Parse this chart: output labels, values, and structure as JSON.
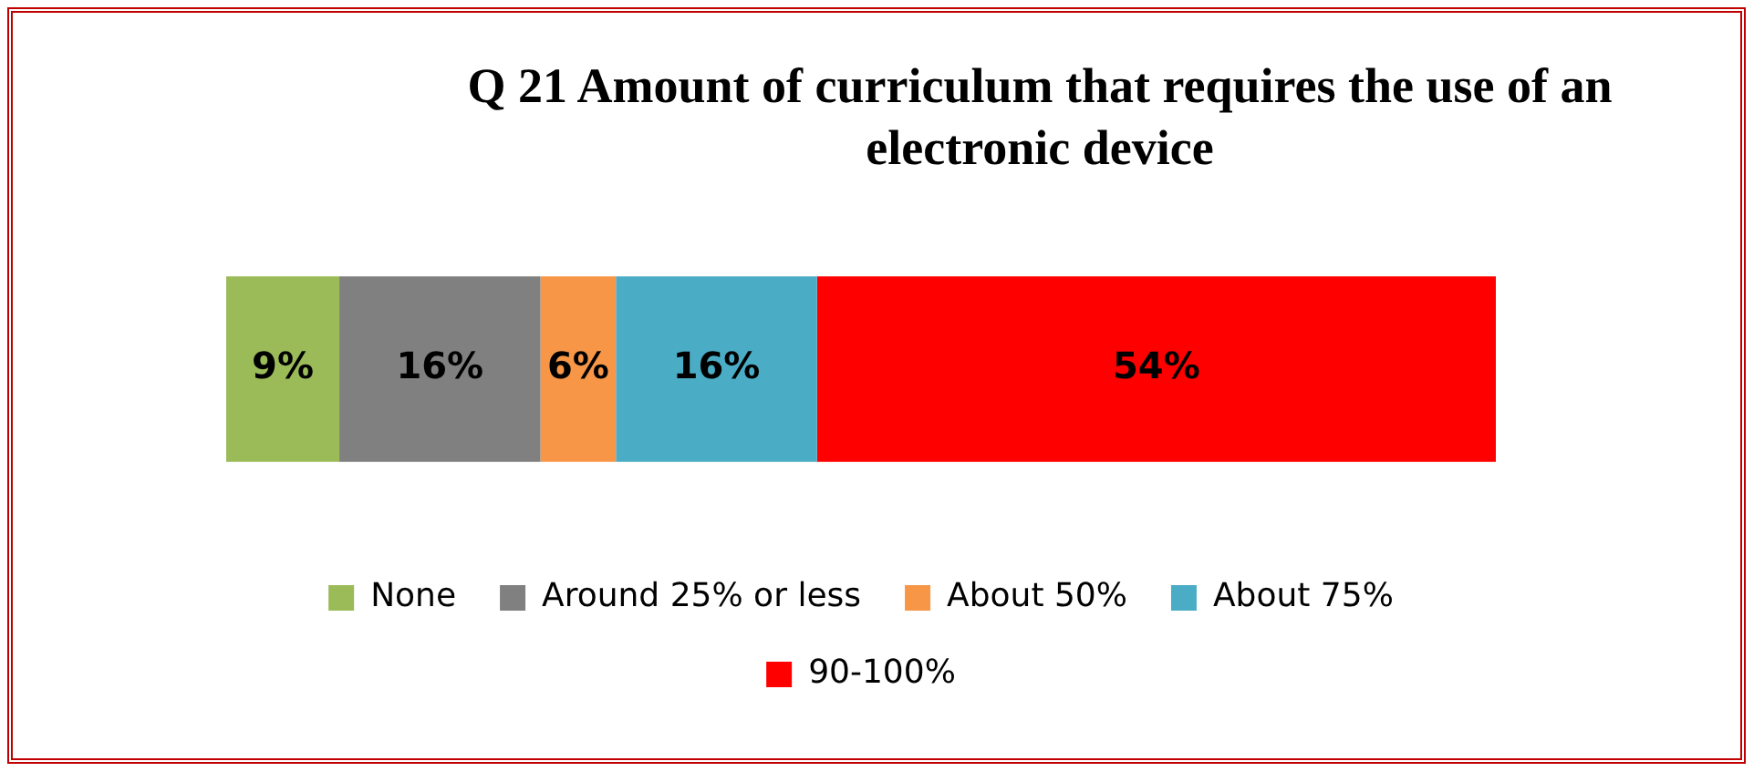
{
  "chart_data": {
    "type": "bar",
    "orientation": "horizontal",
    "stacked": true,
    "title": "Q 21 Amount of curriculum that requires the use of an electronic device",
    "categories": [
      null
    ],
    "series": [
      {
        "name": "None",
        "color": "#9bbb59",
        "values": [
          9
        ],
        "value_labels": [
          "9%"
        ]
      },
      {
        "name": "Around 25% or less",
        "color": "#808080",
        "values": [
          16
        ],
        "value_labels": [
          "16%"
        ]
      },
      {
        "name": "About 50%",
        "color": "#f79646",
        "values": [
          6
        ],
        "value_labels": [
          "6%"
        ]
      },
      {
        "name": "About 75%",
        "color": "#4bacc6",
        "values": [
          16
        ],
        "value_labels": [
          "16%"
        ]
      },
      {
        "name": "90-100%",
        "color": "#ff0000",
        "values": [
          54
        ],
        "value_labels": [
          "54%"
        ]
      }
    ],
    "legend": "bottom",
    "tick_labels": false
  }
}
